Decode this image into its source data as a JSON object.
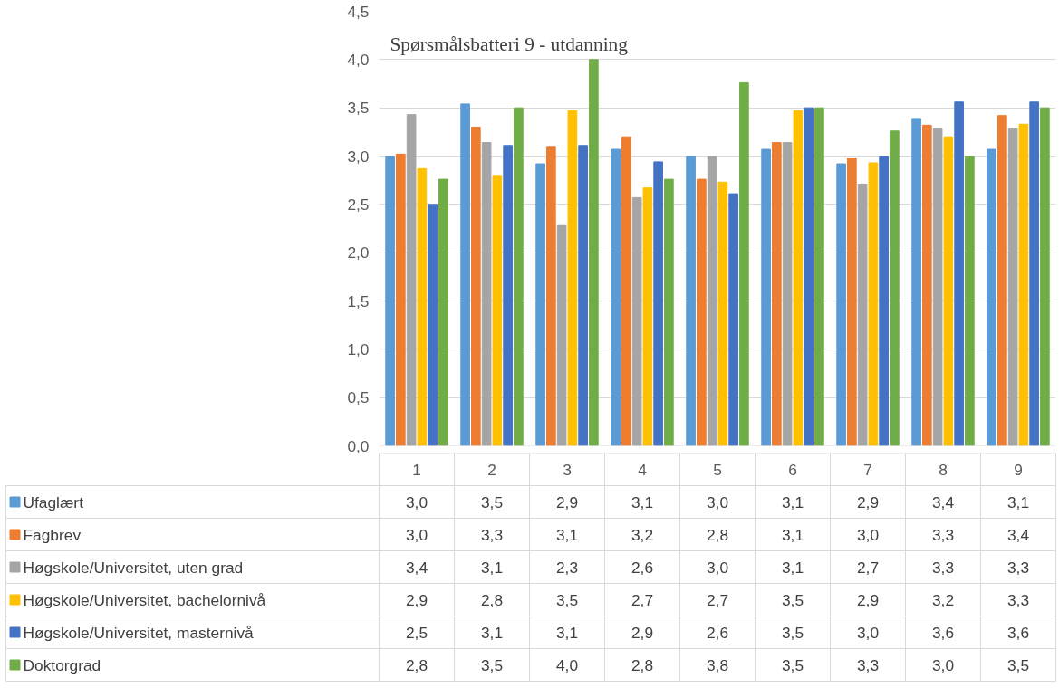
{
  "chart_data": {
    "type": "bar",
    "title": "Spørsmålsbatteri 9 - utdanning",
    "categories": [
      "1",
      "2",
      "3",
      "4",
      "5",
      "6",
      "7",
      "8",
      "9"
    ],
    "series": [
      {
        "name": "Ufaglært",
        "color": "#5b9bd5",
        "values": [
          3.0,
          3.54,
          2.92,
          3.07,
          3.0,
          3.07,
          2.92,
          3.39,
          3.07
        ],
        "value_labels": [
          "3,0",
          "3,5",
          "2,9",
          "3,1",
          "3,0",
          "3,1",
          "2,9",
          "3,4",
          "3,1"
        ]
      },
      {
        "name": "Fagbrev",
        "color": "#ed7d31",
        "values": [
          3.02,
          3.3,
          3.1,
          3.2,
          2.76,
          3.14,
          2.98,
          3.32,
          3.42
        ],
        "value_labels": [
          "3,0",
          "3,3",
          "3,1",
          "3,2",
          "2,8",
          "3,1",
          "3,0",
          "3,3",
          "3,4"
        ]
      },
      {
        "name": "Høgskole/Universitet, uten grad",
        "color": "#a5a5a5",
        "values": [
          3.43,
          3.14,
          2.29,
          2.57,
          3.0,
          3.14,
          2.71,
          3.29,
          3.29
        ],
        "value_labels": [
          "3,4",
          "3,1",
          "2,3",
          "2,6",
          "3,0",
          "3,1",
          "2,7",
          "3,3",
          "3,3"
        ]
      },
      {
        "name": "Høgskole/Universitet, bachelornivå",
        "color": "#ffc000",
        "values": [
          2.87,
          2.8,
          3.47,
          2.67,
          2.73,
          3.47,
          2.93,
          3.2,
          3.33
        ],
        "value_labels": [
          "2,9",
          "2,8",
          "3,5",
          "2,7",
          "2,7",
          "3,5",
          "2,9",
          "3,2",
          "3,3"
        ]
      },
      {
        "name": "Høgskole/Universitet, masternivå",
        "color": "#4472c4",
        "values": [
          2.5,
          3.11,
          3.11,
          2.94,
          2.61,
          3.5,
          3.0,
          3.56,
          3.56
        ],
        "value_labels": [
          "2,5",
          "3,1",
          "3,1",
          "2,9",
          "2,6",
          "3,5",
          "3,0",
          "3,6",
          "3,6"
        ]
      },
      {
        "name": "Doktorgrad",
        "color": "#70ad47",
        "values": [
          2.76,
          3.5,
          4.0,
          2.76,
          3.76,
          3.5,
          3.26,
          3.0,
          3.5
        ],
        "value_labels": [
          "2,8",
          "3,5",
          "4,0",
          "2,8",
          "3,8",
          "3,5",
          "3,3",
          "3,0",
          "3,5"
        ]
      }
    ],
    "ylim": [
      0,
      4.5
    ],
    "yticks": [
      {
        "value": 0,
        "label": "0,0"
      },
      {
        "value": 0.5,
        "label": "0,5"
      },
      {
        "value": 1,
        "label": "1,0"
      },
      {
        "value": 1.5,
        "label": "1,5"
      },
      {
        "value": 2,
        "label": "2,0"
      },
      {
        "value": 2.5,
        "label": "2,5"
      },
      {
        "value": 3,
        "label": "3,0"
      },
      {
        "value": 3.5,
        "label": "3,5"
      },
      {
        "value": 4,
        "label": "4,0"
      },
      {
        "value": 4.5,
        "label": "4,5"
      }
    ],
    "grid": "y",
    "legend": "bottom left"
  }
}
